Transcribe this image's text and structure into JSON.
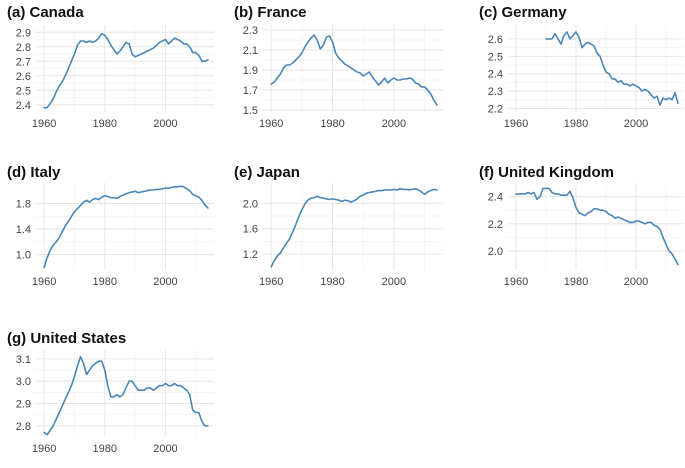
{
  "figure": {
    "line_color": "#4a86b8"
  },
  "chart_data": [
    {
      "type": "line",
      "title": "(a) Canada",
      "xlabel": "",
      "ylabel": "",
      "xlim": [
        1957,
        2016
      ],
      "ylim": [
        2.35,
        2.95
      ],
      "xticks": [
        1960,
        1980,
        2000
      ],
      "yticks": [
        2.4,
        2.5,
        2.6,
        2.7,
        2.8,
        2.9
      ],
      "yticklabels": [
        "2.4",
        "2.5",
        "2.6",
        "2.7",
        "2.8",
        "2.9"
      ],
      "grid": true,
      "series": [
        {
          "x": [
            1960,
            1961,
            1962,
            1963,
            1964,
            1965,
            1966,
            1967,
            1968,
            1969,
            1970,
            1971,
            1972,
            1973,
            1974,
            1975,
            1976,
            1977,
            1978,
            1979,
            1980,
            1981,
            1982,
            1983,
            1984,
            1985,
            1986,
            1987,
            1988,
            1989,
            1990,
            1991,
            1992,
            1993,
            1994,
            1995,
            1996,
            1997,
            1998,
            1999,
            2000,
            2001,
            2002,
            2003,
            2004,
            2005,
            2006,
            2007,
            2008,
            2009,
            2010,
            2011,
            2012,
            2013,
            2014
          ],
          "y": [
            2.38,
            2.38,
            2.41,
            2.44,
            2.49,
            2.53,
            2.56,
            2.6,
            2.65,
            2.7,
            2.75,
            2.81,
            2.84,
            2.84,
            2.83,
            2.84,
            2.83,
            2.84,
            2.86,
            2.89,
            2.88,
            2.85,
            2.81,
            2.78,
            2.75,
            2.77,
            2.8,
            2.83,
            2.82,
            2.75,
            2.73,
            2.74,
            2.75,
            2.76,
            2.77,
            2.78,
            2.79,
            2.81,
            2.83,
            2.84,
            2.85,
            2.82,
            2.84,
            2.86,
            2.85,
            2.84,
            2.82,
            2.82,
            2.8,
            2.76,
            2.76,
            2.74,
            2.7,
            2.7,
            2.71
          ]
        }
      ]
    },
    {
      "type": "line",
      "title": "(b) France",
      "xlabel": "",
      "ylabel": "",
      "xlim": [
        1957,
        2016
      ],
      "ylim": [
        1.48,
        2.35
      ],
      "xticks": [
        1960,
        1980,
        2000
      ],
      "yticks": [
        1.5,
        1.7,
        1.9,
        2.1,
        2.3
      ],
      "yticklabels": [
        "1.5",
        "1.7",
        "1.9",
        "2.1",
        "2.3"
      ],
      "grid": true,
      "series": [
        {
          "x": [
            1960,
            1961,
            1962,
            1963,
            1964,
            1965,
            1966,
            1967,
            1968,
            1969,
            1970,
            1971,
            1972,
            1973,
            1974,
            1975,
            1976,
            1977,
            1978,
            1979,
            1980,
            1981,
            1982,
            1983,
            1984,
            1985,
            1986,
            1987,
            1988,
            1989,
            1990,
            1991,
            1992,
            1993,
            1994,
            1995,
            1996,
            1997,
            1998,
            1999,
            2000,
            2001,
            2002,
            2003,
            2004,
            2005,
            2006,
            2007,
            2008,
            2009,
            2010,
            2011,
            2012,
            2013,
            2014
          ],
          "y": [
            1.76,
            1.78,
            1.82,
            1.86,
            1.92,
            1.95,
            1.95,
            1.97,
            2.0,
            2.03,
            2.07,
            2.13,
            2.18,
            2.22,
            2.25,
            2.2,
            2.11,
            2.15,
            2.23,
            2.24,
            2.18,
            2.07,
            2.02,
            1.99,
            1.96,
            1.94,
            1.92,
            1.9,
            1.88,
            1.87,
            1.84,
            1.86,
            1.88,
            1.83,
            1.79,
            1.75,
            1.78,
            1.82,
            1.77,
            1.8,
            1.82,
            1.8,
            1.8,
            1.81,
            1.81,
            1.82,
            1.81,
            1.77,
            1.76,
            1.73,
            1.73,
            1.7,
            1.66,
            1.6,
            1.55
          ]
        }
      ]
    },
    {
      "type": "line",
      "title": "(c) Germany",
      "xlabel": "",
      "ylabel": "",
      "xlim": [
        1957,
        2016
      ],
      "ylim": [
        2.18,
        2.68
      ],
      "xticks": [
        1960,
        1980,
        2000
      ],
      "yticks": [
        2.2,
        2.3,
        2.4,
        2.5,
        2.6
      ],
      "yticklabels": [
        "2.2",
        "2.3",
        "2.4",
        "2.5",
        "2.6"
      ],
      "grid": true,
      "series": [
        {
          "x": [
            1970,
            1971,
            1972,
            1973,
            1974,
            1975,
            1976,
            1977,
            1978,
            1979,
            1980,
            1981,
            1982,
            1983,
            1984,
            1985,
            1986,
            1987,
            1988,
            1989,
            1990,
            1991,
            1992,
            1993,
            1994,
            1995,
            1996,
            1997,
            1998,
            1999,
            2000,
            2001,
            2002,
            2003,
            2004,
            2005,
            2006,
            2007,
            2008,
            2009,
            2010,
            2011,
            2012,
            2013,
            2014
          ],
          "y": [
            2.6,
            2.6,
            2.6,
            2.63,
            2.6,
            2.57,
            2.62,
            2.64,
            2.6,
            2.62,
            2.64,
            2.61,
            2.55,
            2.57,
            2.58,
            2.57,
            2.56,
            2.52,
            2.5,
            2.45,
            2.41,
            2.4,
            2.37,
            2.37,
            2.35,
            2.36,
            2.34,
            2.34,
            2.33,
            2.34,
            2.33,
            2.32,
            2.3,
            2.31,
            2.3,
            2.28,
            2.26,
            2.27,
            2.22,
            2.26,
            2.25,
            2.26,
            2.25,
            2.29,
            2.23
          ]
        }
      ]
    },
    {
      "type": "line",
      "title": "(d) Italy",
      "xlabel": "",
      "ylabel": "",
      "xlim": [
        1957,
        2016
      ],
      "ylim": [
        0.76,
        2.12
      ],
      "xticks": [
        1960,
        1980,
        2000
      ],
      "yticks": [
        1.0,
        1.4,
        1.8
      ],
      "yticklabels": [
        "1.0",
        "1.4",
        "1.8"
      ],
      "grid": true,
      "series": [
        {
          "x": [
            1960,
            1961,
            1962,
            1963,
            1964,
            1965,
            1966,
            1967,
            1968,
            1969,
            1970,
            1971,
            1972,
            1973,
            1974,
            1975,
            1976,
            1977,
            1978,
            1979,
            1980,
            1981,
            1982,
            1983,
            1984,
            1985,
            1986,
            1987,
            1988,
            1989,
            1990,
            1991,
            1992,
            1993,
            1994,
            1995,
            1996,
            1997,
            1998,
            1999,
            2000,
            2001,
            2002,
            2003,
            2004,
            2005,
            2006,
            2007,
            2008,
            2009,
            2010,
            2011,
            2012,
            2013,
            2014
          ],
          "y": [
            0.8,
            0.95,
            1.07,
            1.15,
            1.2,
            1.27,
            1.36,
            1.45,
            1.52,
            1.6,
            1.67,
            1.72,
            1.77,
            1.82,
            1.85,
            1.82,
            1.86,
            1.88,
            1.86,
            1.9,
            1.92,
            1.91,
            1.89,
            1.89,
            1.88,
            1.91,
            1.93,
            1.95,
            1.97,
            1.98,
            1.99,
            1.97,
            1.98,
            1.99,
            2.0,
            2.01,
            2.01,
            2.02,
            2.02,
            2.03,
            2.04,
            2.04,
            2.05,
            2.06,
            2.06,
            2.07,
            2.06,
            2.03,
            2.0,
            1.94,
            1.92,
            1.9,
            1.85,
            1.78,
            1.73
          ]
        }
      ]
    },
    {
      "type": "line",
      "title": "(e) Japan",
      "xlabel": "",
      "ylabel": "",
      "xlim": [
        1957,
        2016
      ],
      "ylim": [
        0.95,
        2.32
      ],
      "xticks": [
        1960,
        1980,
        2000
      ],
      "yticks": [
        1.2,
        1.6,
        2.0
      ],
      "yticklabels": [
        "1.2",
        "1.6",
        "2.0"
      ],
      "grid": true,
      "series": [
        {
          "x": [
            1960,
            1961,
            1962,
            1963,
            1964,
            1965,
            1966,
            1967,
            1968,
            1969,
            1970,
            1971,
            1972,
            1973,
            1974,
            1975,
            1976,
            1977,
            1978,
            1979,
            1980,
            1981,
            1982,
            1983,
            1984,
            1985,
            1986,
            1987,
            1988,
            1989,
            1990,
            1991,
            1992,
            1993,
            1994,
            1995,
            1996,
            1997,
            1998,
            1999,
            2000,
            2001,
            2002,
            2003,
            2004,
            2005,
            2006,
            2007,
            2008,
            2009,
            2010,
            2011,
            2012,
            2013,
            2014
          ],
          "y": [
            1.0,
            1.1,
            1.17,
            1.22,
            1.3,
            1.37,
            1.44,
            1.55,
            1.66,
            1.79,
            1.9,
            1.99,
            2.05,
            2.08,
            2.09,
            2.11,
            2.09,
            2.08,
            2.07,
            2.06,
            2.07,
            2.06,
            2.05,
            2.03,
            2.05,
            2.04,
            2.02,
            2.04,
            2.07,
            2.11,
            2.13,
            2.16,
            2.17,
            2.18,
            2.19,
            2.2,
            2.2,
            2.21,
            2.21,
            2.21,
            2.22,
            2.21,
            2.23,
            2.22,
            2.22,
            2.21,
            2.22,
            2.23,
            2.21,
            2.18,
            2.14,
            2.18,
            2.2,
            2.22,
            2.21
          ]
        }
      ]
    },
    {
      "type": "line",
      "title": "(f) United Kingdom",
      "xlabel": "",
      "ylabel": "",
      "xlim": [
        1957,
        2016
      ],
      "ylim": [
        1.86,
        2.5
      ],
      "xticks": [
        1960,
        1980,
        2000
      ],
      "yticks": [
        2.0,
        2.2,
        2.4
      ],
      "yticklabels": [
        "2.0",
        "2.2",
        "2.4"
      ],
      "grid": true,
      "series": [
        {
          "x": [
            1960,
            1961,
            1962,
            1963,
            1964,
            1965,
            1966,
            1967,
            1968,
            1969,
            1970,
            1971,
            1972,
            1973,
            1974,
            1975,
            1976,
            1977,
            1978,
            1979,
            1980,
            1981,
            1982,
            1983,
            1984,
            1985,
            1986,
            1987,
            1988,
            1989,
            1990,
            1991,
            1992,
            1993,
            1994,
            1995,
            1996,
            1997,
            1998,
            1999,
            2000,
            2001,
            2002,
            2003,
            2004,
            2005,
            2006,
            2007,
            2008,
            2009,
            2010,
            2011,
            2012,
            2013,
            2014
          ],
          "y": [
            2.42,
            2.42,
            2.42,
            2.42,
            2.43,
            2.42,
            2.43,
            2.38,
            2.4,
            2.46,
            2.46,
            2.46,
            2.43,
            2.42,
            2.42,
            2.41,
            2.41,
            2.41,
            2.44,
            2.39,
            2.32,
            2.28,
            2.27,
            2.26,
            2.28,
            2.29,
            2.31,
            2.31,
            2.3,
            2.3,
            2.29,
            2.27,
            2.26,
            2.24,
            2.25,
            2.24,
            2.23,
            2.22,
            2.21,
            2.21,
            2.22,
            2.22,
            2.21,
            2.2,
            2.21,
            2.21,
            2.19,
            2.18,
            2.16,
            2.1,
            2.05,
            2.0,
            1.98,
            1.94,
            1.9
          ]
        }
      ]
    },
    {
      "type": "line",
      "title": "(g) United States",
      "xlabel": "",
      "ylabel": "",
      "xlim": [
        1957,
        2016
      ],
      "ylim": [
        2.75,
        3.14
      ],
      "xticks": [
        1960,
        1980,
        2000
      ],
      "yticks": [
        2.8,
        2.9,
        3.0,
        3.1
      ],
      "yticklabels": [
        "2.8",
        "2.9",
        "3.0",
        "3.1"
      ],
      "grid": true,
      "series": [
        {
          "x": [
            1960,
            1961,
            1962,
            1963,
            1964,
            1965,
            1966,
            1967,
            1968,
            1969,
            1970,
            1971,
            1972,
            1973,
            1974,
            1975,
            1976,
            1977,
            1978,
            1979,
            1980,
            1981,
            1982,
            1983,
            1984,
            1985,
            1986,
            1987,
            1988,
            1989,
            1990,
            1991,
            1992,
            1993,
            1994,
            1995,
            1996,
            1997,
            1998,
            1999,
            2000,
            2001,
            2002,
            2003,
            2004,
            2005,
            2006,
            2007,
            2008,
            2009,
            2010,
            2011,
            2012,
            2013,
            2014
          ],
          "y": [
            2.77,
            2.76,
            2.78,
            2.8,
            2.83,
            2.86,
            2.89,
            2.92,
            2.95,
            2.98,
            3.02,
            3.07,
            3.11,
            3.08,
            3.03,
            3.05,
            3.07,
            3.08,
            3.09,
            3.09,
            3.05,
            2.98,
            2.93,
            2.93,
            2.94,
            2.93,
            2.94,
            2.97,
            3.0,
            3.0,
            2.98,
            2.96,
            2.96,
            2.96,
            2.97,
            2.97,
            2.96,
            2.97,
            2.98,
            2.98,
            2.99,
            2.98,
            2.98,
            2.99,
            2.98,
            2.98,
            2.97,
            2.96,
            2.94,
            2.87,
            2.86,
            2.86,
            2.82,
            2.8,
            2.8
          ]
        }
      ]
    }
  ]
}
